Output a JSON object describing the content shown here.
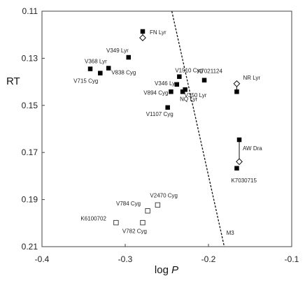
{
  "chart_data": {
    "type": "scatter",
    "title": "",
    "xlabel": "log P",
    "ylabel": "RT",
    "xlim": [
      -0.4,
      -0.1
    ],
    "ylim": [
      0.21,
      0.11
    ],
    "y_inverted": true,
    "grid": false,
    "x_ticks": [
      "-0.4",
      "-0.3",
      "-0.2",
      "-0.1"
    ],
    "y_ticks": [
      "0.11",
      "0.13",
      "0.15",
      "0.17",
      "0.19",
      "0.21"
    ],
    "points": [
      {
        "label": "FN Lyr",
        "x": -0.279,
        "y": 0.1186,
        "marker": "filled"
      },
      {
        "label": "",
        "x": -0.279,
        "y": 0.1213,
        "marker": "open-diamond"
      },
      {
        "label": "V349 Lyr",
        "x": -0.296,
        "y": 0.1296,
        "marker": "filled"
      },
      {
        "label": "V368 Lyr",
        "x": -0.342,
        "y": 0.1345,
        "marker": "filled"
      },
      {
        "label": "V715 Cyg",
        "x": -0.33,
        "y": 0.1363,
        "marker": "filled"
      },
      {
        "label": "V838 Cyg",
        "x": -0.32,
        "y": 0.1342,
        "marker": "filled"
      },
      {
        "label": "V1510 Cyg",
        "x": -0.235,
        "y": 0.1378,
        "marker": "filled"
      },
      {
        "label": "K7021124",
        "x": -0.205,
        "y": 0.1393,
        "marker": "filled"
      },
      {
        "label": "V346 Lyr",
        "x": -0.238,
        "y": 0.1411,
        "marker": "filled"
      },
      {
        "label": "V894 Cyg",
        "x": -0.245,
        "y": 0.1442,
        "marker": "filled"
      },
      {
        "label": "V350 Lyr",
        "x": -0.228,
        "y": 0.1433,
        "marker": "filled"
      },
      {
        "label": "NQ Lyr",
        "x": -0.231,
        "y": 0.1442,
        "marker": "filled"
      },
      {
        "label": "V1107 Cyg",
        "x": -0.249,
        "y": 0.1509,
        "marker": "filled"
      },
      {
        "label": "NR Lyr",
        "x": -0.166,
        "y": 0.1408,
        "marker": "open-diamond"
      },
      {
        "label": "",
        "x": -0.166,
        "y": 0.1442,
        "marker": "filled"
      },
      {
        "label": "AW Dra",
        "x": -0.163,
        "y": 0.1646,
        "marker": "filled"
      },
      {
        "label": "",
        "x": -0.163,
        "y": 0.1739,
        "marker": "open-diamond"
      },
      {
        "label": "K7030715",
        "x": -0.166,
        "y": 0.1767,
        "marker": "filled"
      },
      {
        "label": "V2470 Cyg",
        "x": -0.261,
        "y": 0.1923,
        "marker": "open"
      },
      {
        "label": "V784 Cyg",
        "x": -0.273,
        "y": 0.1948,
        "marker": "open"
      },
      {
        "label": "K6100702",
        "x": -0.311,
        "y": 0.1998,
        "marker": "open"
      },
      {
        "label": "V782 Cyg",
        "x": -0.279,
        "y": 0.1998,
        "marker": "open"
      }
    ],
    "connectors": [
      {
        "from": [
          -0.279,
          0.1186
        ],
        "to": [
          -0.279,
          0.1213
        ]
      },
      {
        "from": [
          -0.166,
          0.1408
        ],
        "to": [
          -0.166,
          0.1442
        ]
      },
      {
        "from": [
          -0.163,
          0.1646
        ],
        "to": [
          -0.163,
          0.1739
        ]
      }
    ],
    "reference_line": {
      "label": "M3",
      "style": "dashed",
      "from": [
        -0.244,
        0.11
      ],
      "to": [
        -0.181,
        0.21
      ]
    }
  }
}
